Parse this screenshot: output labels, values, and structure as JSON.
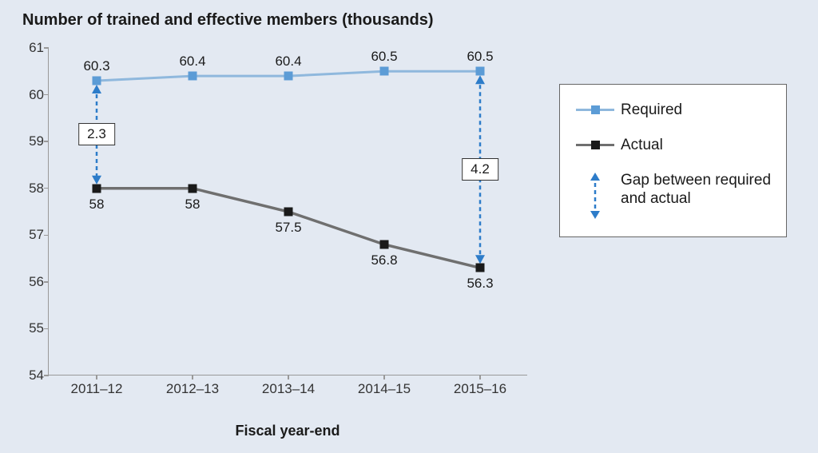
{
  "title": "Number of  trained and effective members (thousands)",
  "xlabel": "Fiscal year-end",
  "chart": {
    "type": "line",
    "ylim": [
      54,
      61
    ],
    "yticks": [
      54,
      55,
      56,
      57,
      58,
      59,
      60,
      61
    ],
    "categories": [
      "2011–12",
      "2012–13",
      "2013–14",
      "2014–15",
      "2015–16"
    ],
    "series": [
      {
        "name": "Required",
        "color": "#8fb8dd",
        "marker_color": "#5c9cd6",
        "line_width": 3,
        "values": [
          60.3,
          60.4,
          60.4,
          60.5,
          60.5
        ],
        "labels": [
          "60.3",
          "60.4",
          "60.4",
          "60.5",
          "60.5"
        ],
        "label_position": "above"
      },
      {
        "name": "Actual",
        "color": "#6f6f6f",
        "marker_color": "#1a1a1a",
        "line_width": 3.5,
        "values": [
          58,
          58,
          57.5,
          56.8,
          56.3
        ],
        "labels": [
          "58",
          "58",
          "57.5",
          "56.8",
          "56.3"
        ],
        "label_position": "below"
      }
    ],
    "gaps": [
      {
        "at_index": 0,
        "value": "2.3",
        "color": "#2d7cc9"
      },
      {
        "at_index": 4,
        "value": "4.2",
        "color": "#2d7cc9"
      }
    ],
    "legend": {
      "items": [
        {
          "label": "Required"
        },
        {
          "label": "Actual"
        },
        {
          "label": "Gap between required and actual"
        }
      ]
    },
    "background_color": "#e3e9f2",
    "axis_color": "#999999",
    "label_fontsize": 17,
    "title_fontsize": 20
  }
}
